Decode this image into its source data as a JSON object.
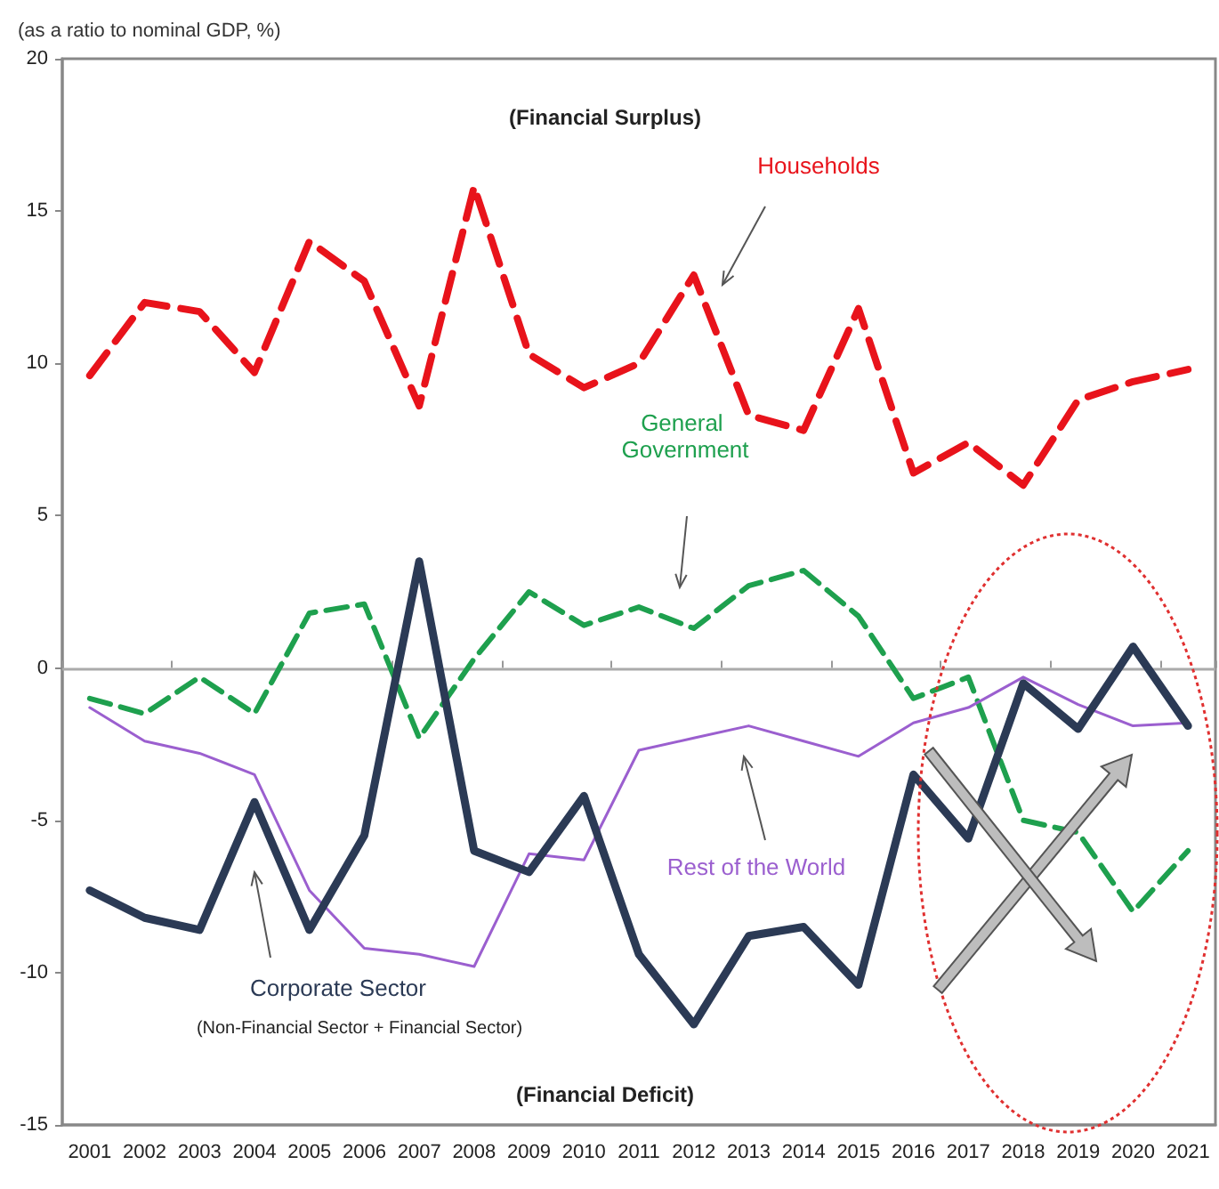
{
  "chart_data": {
    "type": "line",
    "ylabel": "(as a ratio to nominal GDP, %)",
    "categories": [
      "2001",
      "2002",
      "2003",
      "2004",
      "2005",
      "2006",
      "2007",
      "2008",
      "2009",
      "2010",
      "2011",
      "2012",
      "2013",
      "2014",
      "2015",
      "2016",
      "2017",
      "2018",
      "2019",
      "2020",
      "2021"
    ],
    "ref_lines": [
      {
        "axis": "y",
        "value": 0,
        "color": "#aaaaaa"
      }
    ],
    "ylim": [
      -15,
      20
    ],
    "yticks": [
      -15,
      -10,
      -5,
      0,
      5,
      10,
      15,
      20
    ],
    "grid": false,
    "legend": false,
    "marker": "none",
    "annotations": [
      "(Financial Surplus)",
      "(Financial Deficit)",
      "(Non-Financial Sector + Financial Sector)"
    ],
    "series": [
      {
        "name": "Households",
        "color": "#e8131b",
        "line_style": "dashed",
        "values": [
          9.6,
          12.0,
          11.7,
          9.7,
          14.0,
          12.7,
          8.6,
          15.8,
          10.3,
          9.2,
          10.0,
          12.9,
          8.3,
          7.8,
          11.8,
          6.4,
          7.4,
          6.0,
          8.8,
          9.4,
          9.8
        ]
      },
      {
        "name": "General Government",
        "color": "#1ea04e",
        "line_style": "dashed",
        "values": [
          -1.0,
          -1.5,
          -0.3,
          -1.5,
          1.8,
          2.1,
          -2.3,
          0.3,
          2.5,
          1.4,
          2.0,
          1.3,
          2.7,
          3.2,
          1.7,
          -1.0,
          -0.3,
          -5.0,
          -5.4,
          -8.0,
          -6.0
        ]
      },
      {
        "name": "Rest of the World",
        "color": "#9b5fcf",
        "line_style": "solid",
        "values": [
          -1.3,
          -2.4,
          -2.8,
          -3.5,
          -7.3,
          -9.2,
          -9.4,
          -9.8,
          -6.1,
          -6.3,
          -2.7,
          -2.3,
          -1.9,
          -2.4,
          -2.9,
          -1.8,
          -1.3,
          -0.3,
          -1.2,
          -1.9,
          -1.8
        ]
      },
      {
        "name": "Corporate Sector",
        "color": "#2b3a55",
        "line_style": "solid",
        "values": [
          -7.3,
          -8.2,
          -8.6,
          -4.4,
          -8.6,
          -5.5,
          3.5,
          -6.0,
          -6.7,
          -4.2,
          -9.4,
          -11.7,
          -8.8,
          -8.5,
          -10.4,
          -3.5,
          -5.6,
          -0.5,
          -2.0,
          0.7,
          -1.9
        ]
      }
    ]
  }
}
